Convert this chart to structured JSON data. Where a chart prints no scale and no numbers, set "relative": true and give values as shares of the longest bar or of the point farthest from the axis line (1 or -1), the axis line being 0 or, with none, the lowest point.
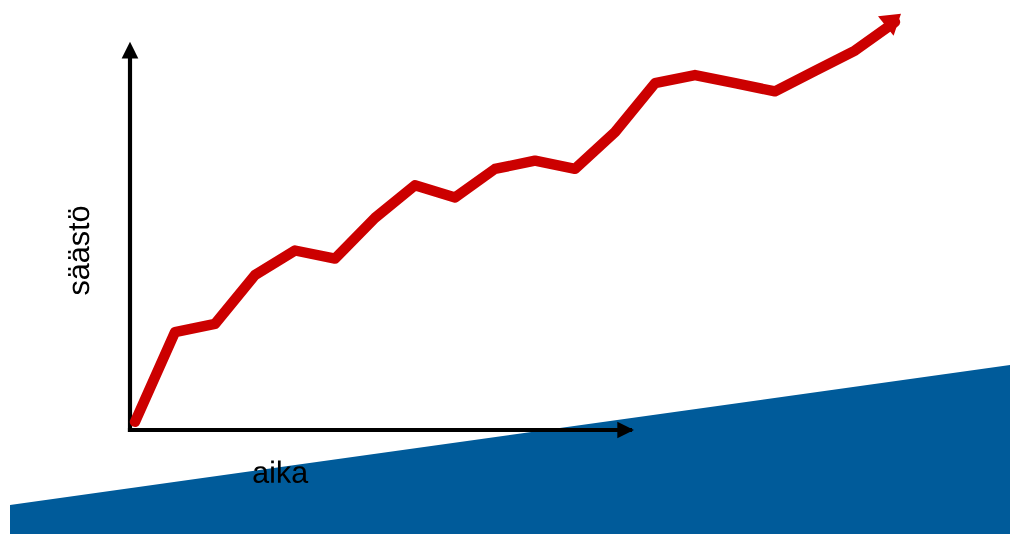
{
  "chart_data": {
    "type": "line",
    "relative": true,
    "xlabel": "aika",
    "ylabel": "säästö",
    "color": "#cc0000",
    "categories": [
      null,
      null,
      null,
      null,
      null,
      null,
      null,
      null,
      null,
      null,
      null,
      null,
      null,
      null,
      null,
      null,
      null,
      null,
      null,
      null
    ],
    "values": [
      0.02,
      0.24,
      0.26,
      0.38,
      0.44,
      0.42,
      0.52,
      0.6,
      0.57,
      0.64,
      0.66,
      0.64,
      0.73,
      0.85,
      0.87,
      0.85,
      0.83,
      0.88,
      0.93,
      1.0
    ]
  }
}
